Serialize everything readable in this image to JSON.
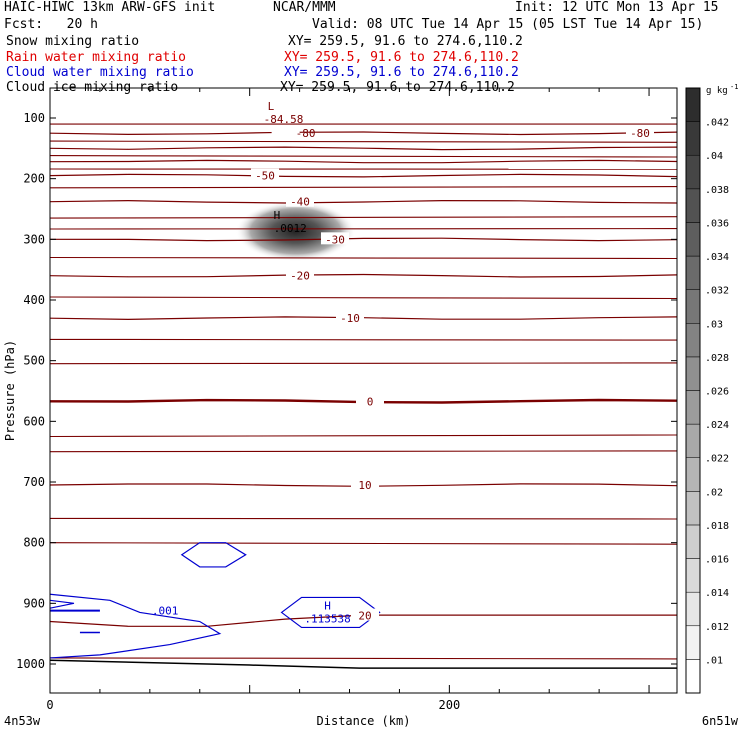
{
  "header": {
    "model": "HAIC-HIWC 13km ARW-GFS init",
    "center": "NCAR/MMM",
    "init": "Init: 12 UTC Mon 13 Apr 15",
    "fcst": "Fcst:   20 h",
    "valid": "Valid: 08 UTC Tue 14 Apr 15 (05 LST Tue 14 Apr 15)"
  },
  "fields": [
    {
      "label": "Snow mixing ratio",
      "xy": "XY= 259.5, 91.6 to 274.6,110.2",
      "color": "#000000"
    },
    {
      "label": "Rain water mixing ratio",
      "xy": "XY= 259.5, 91.6 to 274.6,110.2",
      "color": "#e00000"
    },
    {
      "label": "Cloud water mixing ratio",
      "xy": "XY= 259.5, 91.6 to 274.6,110.2",
      "color": "#0000d0"
    },
    {
      "label": "Cloud ice mixing ratio",
      "xy": "XY= 259.5, 91.6 to 274.6,110.2",
      "color": "#000000"
    }
  ],
  "chart_data": {
    "type": "heatmap",
    "ylabel": "Pressure (hPa)",
    "xlabel": "Distance (km)",
    "y_ticks": [
      100,
      200,
      300,
      400,
      500,
      600,
      700,
      800,
      900,
      1000
    ],
    "x_ticks": [
      0,
      200
    ],
    "ylim": [
      1050,
      50
    ],
    "xlim": [
      0,
      314
    ],
    "left_point": "4n53w",
    "right_point": "6n51w",
    "colorbar": {
      "unit": "g kg",
      "unit_exp": "-1",
      "ticks": [
        ".01",
        ".012",
        ".014",
        ".016",
        ".018",
        ".02",
        ".022",
        ".024",
        ".026",
        ".028",
        ".03",
        ".032",
        ".034",
        ".036",
        ".038",
        ".04",
        ".042"
      ],
      "range": [
        0.01,
        0.044
      ]
    },
    "temperature_contours": [
      {
        "value": -80,
        "p": 125,
        "label": "-80"
      },
      {
        "value": -70,
        "p": 150
      },
      {
        "value": -60,
        "p": 172
      },
      {
        "value": -50,
        "p": 195,
        "label": "-50"
      },
      {
        "value": -40,
        "p": 238,
        "label": "-40"
      },
      {
        "value": -30,
        "p": 300,
        "label": "-30"
      },
      {
        "value": -20,
        "p": 360,
        "label": "-20"
      },
      {
        "value": -10,
        "p": 430,
        "label": "-10"
      },
      {
        "value": 0,
        "p": 567,
        "label": "0"
      },
      {
        "value": 10,
        "p": 705,
        "label": "10"
      },
      {
        "value": 20,
        "p": 930,
        "label": "20"
      }
    ],
    "min_label": {
      "text": "L",
      "value": "-84.58",
      "x_km": 118,
      "p": 95
    },
    "snow_max": {
      "text": "H",
      "value": ".0012",
      "x_km": 118,
      "p": 275,
      "qsnow": 0.044
    },
    "cloud_max": {
      "text": "H",
      "value": ".113538",
      "x_km": 140,
      "p": 915
    },
    "cloud_label": {
      "value": ".001",
      "x_km": 42,
      "p": 912
    }
  }
}
